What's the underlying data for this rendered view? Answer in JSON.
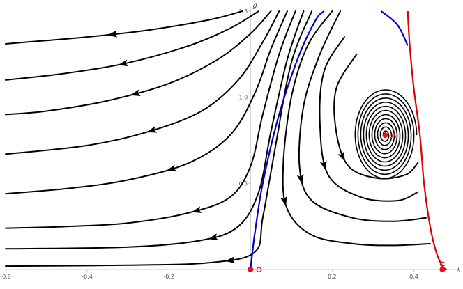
{
  "chart_data": {
    "type": "streamplot",
    "xlabel": "λ",
    "ylabel": "g",
    "xlim": [
      -0.6,
      0.5
    ],
    "ylim": [
      0,
      1.5
    ],
    "x_ticks": [
      -0.6,
      -0.4,
      -0.2,
      0.2,
      0.4
    ],
    "x_tick_labels": [
      "-0.6",
      "-0.4",
      "-0.2",
      "0.2",
      "0.4"
    ],
    "y_ticks": [
      0.5,
      1.0,
      1.5
    ],
    "y_tick_labels": [
      "0.5",
      "1.0",
      "1.5"
    ],
    "colors": {
      "streamlines": "#000000",
      "separatrix": "#0000cc",
      "boundary": "#dd0000",
      "points": "#ee1111",
      "axes": "#bfbfbf"
    },
    "points": [
      {
        "label": "O",
        "x": 0.0,
        "y": 0.0
      },
      {
        "label": "A",
        "x": 0.33,
        "y": 0.78
      },
      {
        "label": "C",
        "x": 0.47,
        "y": 0.0
      }
    ],
    "separatrix": [
      [
        0.0,
        0.0
      ],
      [
        0.01,
        0.2
      ],
      [
        0.03,
        0.5
      ],
      [
        0.07,
        0.9
      ],
      [
        0.12,
        1.25
      ],
      [
        0.16,
        1.45
      ],
      [
        0.18,
        1.5
      ]
    ],
    "boundary_upper": [
      [
        0.32,
        1.5
      ],
      [
        0.36,
        1.42
      ],
      [
        0.385,
        1.3
      ]
    ],
    "boundary_red": [
      [
        0.385,
        1.5
      ],
      [
        0.39,
        1.3
      ],
      [
        0.4,
        1.05
      ],
      [
        0.415,
        0.78
      ],
      [
        0.425,
        0.5
      ],
      [
        0.44,
        0.25
      ],
      [
        0.455,
        0.1
      ],
      [
        0.47,
        0.02
      ],
      [
        0.48,
        0.0
      ]
    ],
    "streamlines": [
      [
        [
          -0.02,
          1.5
        ],
        [
          -0.1,
          1.45
        ],
        [
          -0.25,
          1.39
        ],
        [
          -0.4,
          1.35
        ],
        [
          -0.55,
          1.32
        ],
        [
          -0.6,
          1.31
        ]
      ],
      [
        [
          0.02,
          1.5
        ],
        [
          -0.05,
          1.4
        ],
        [
          -0.15,
          1.3
        ],
        [
          -0.3,
          1.2
        ],
        [
          -0.45,
          1.14
        ],
        [
          -0.6,
          1.1
        ]
      ],
      [
        [
          0.05,
          1.5
        ],
        [
          0.0,
          1.37
        ],
        [
          -0.08,
          1.22
        ],
        [
          -0.2,
          1.08
        ],
        [
          -0.35,
          0.98
        ],
        [
          -0.5,
          0.92
        ],
        [
          -0.6,
          0.9
        ]
      ],
      [
        [
          0.07,
          1.5
        ],
        [
          0.03,
          1.32
        ],
        [
          -0.03,
          1.1
        ],
        [
          -0.12,
          0.92
        ],
        [
          -0.25,
          0.8
        ],
        [
          -0.4,
          0.72
        ],
        [
          -0.6,
          0.67
        ]
      ],
      [
        [
          0.09,
          1.5
        ],
        [
          0.05,
          1.28
        ],
        [
          0.01,
          1.02
        ],
        [
          -0.05,
          0.78
        ],
        [
          -0.15,
          0.62
        ],
        [
          -0.3,
          0.52
        ],
        [
          -0.45,
          0.47
        ],
        [
          -0.6,
          0.44
        ]
      ],
      [
        [
          0.11,
          1.5
        ],
        [
          0.07,
          1.25
        ],
        [
          0.03,
          0.9
        ],
        [
          0.0,
          0.6
        ],
        [
          -0.05,
          0.42
        ],
        [
          -0.15,
          0.33
        ],
        [
          -0.3,
          0.27
        ],
        [
          -0.45,
          0.25
        ],
        [
          -0.6,
          0.24
        ]
      ],
      [
        [
          0.13,
          1.5
        ],
        [
          0.09,
          1.22
        ],
        [
          0.05,
          0.8
        ],
        [
          0.02,
          0.45
        ],
        [
          -0.03,
          0.25
        ],
        [
          -0.12,
          0.17
        ],
        [
          -0.3,
          0.13
        ],
        [
          -0.6,
          0.12
        ]
      ],
      [
        [
          0.15,
          1.5
        ],
        [
          0.1,
          1.2
        ],
        [
          0.06,
          0.7
        ],
        [
          0.03,
          0.3
        ],
        [
          0.01,
          0.1
        ],
        [
          -0.1,
          0.04
        ],
        [
          -0.3,
          0.025
        ],
        [
          -0.6,
          0.02
        ]
      ],
      [
        [
          0.2,
          1.5
        ],
        [
          0.14,
          1.3
        ],
        [
          0.1,
          1.0
        ],
        [
          0.08,
          0.6
        ],
        [
          0.09,
          0.35
        ],
        [
          0.15,
          0.2
        ],
        [
          0.25,
          0.15
        ],
        [
          0.35,
          0.14
        ],
        [
          0.44,
          0.15
        ]
      ],
      [
        [
          0.22,
          1.5
        ],
        [
          0.17,
          1.25
        ],
        [
          0.13,
          0.95
        ],
        [
          0.12,
          0.6
        ],
        [
          0.15,
          0.4
        ],
        [
          0.25,
          0.3
        ],
        [
          0.35,
          0.28
        ],
        [
          0.43,
          0.3
        ]
      ],
      [
        [
          0.23,
          1.35
        ],
        [
          0.18,
          1.15
        ],
        [
          0.17,
          0.85
        ],
        [
          0.19,
          0.55
        ],
        [
          0.27,
          0.42
        ],
        [
          0.36,
          0.4
        ],
        [
          0.41,
          0.45
        ]
      ],
      [
        [
          0.26,
          1.25
        ],
        [
          0.21,
          1.05
        ],
        [
          0.21,
          0.8
        ],
        [
          0.24,
          0.6
        ],
        [
          0.31,
          0.53
        ],
        [
          0.38,
          0.55
        ],
        [
          0.41,
          0.62
        ]
      ]
    ],
    "spiral_center": [
      0.33,
      0.78
    ]
  }
}
